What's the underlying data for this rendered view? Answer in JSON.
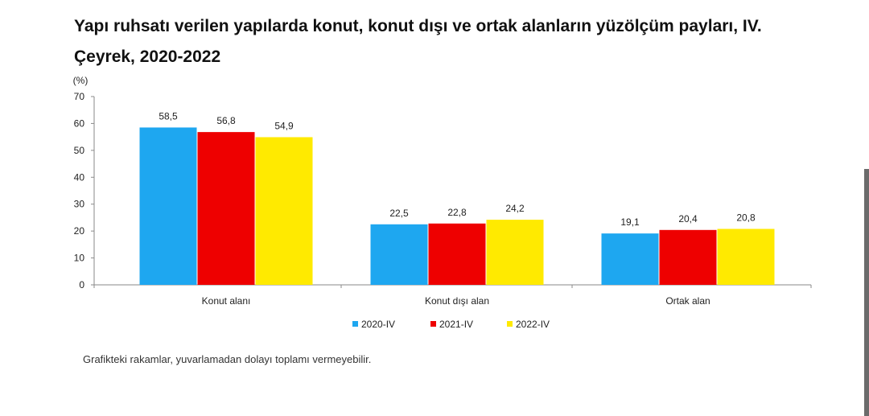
{
  "title_line1": "Yapı ruhsatı verilen yapılarda konut, konut dışı ve ortak alanların yüzölçüm payları, IV.",
  "title_line2": "Çeyrek, 2020-2022",
  "note": "Grafikteki rakamlar, yuvarlamadan dolayı toplamı vermeyebilir.",
  "chart_data": {
    "type": "bar",
    "title": "Yapı ruhsatı verilen yapılarda konut, konut dışı ve ortak alanların yüzölçüm payları, IV. Çeyrek, 2020-2022",
    "ylabel": "(%)",
    "xlabel": "",
    "ylim": [
      0,
      70
    ],
    "yticks": [
      0,
      10,
      20,
      30,
      40,
      50,
      60,
      70
    ],
    "categories": [
      "Konut alanı",
      "Konut dışı alan",
      "Ortak alan"
    ],
    "series": [
      {
        "name": "2020-IV",
        "values": [
          58.5,
          22.5,
          19.1
        ],
        "labels": [
          "58,5",
          "22,5",
          "19,1"
        ],
        "color": "#1ea7f0"
      },
      {
        "name": "2021-IV",
        "values": [
          56.8,
          22.8,
          20.4
        ],
        "labels": [
          "56,8",
          "22,8",
          "20,4"
        ],
        "color": "#ee0000"
      },
      {
        "name": "2022-IV",
        "values": [
          54.9,
          24.2,
          20.8
        ],
        "labels": [
          "54,9",
          "24,2",
          "20,8"
        ],
        "color": "#ffea00"
      }
    ],
    "grid": false,
    "legend_position": "bottom"
  }
}
